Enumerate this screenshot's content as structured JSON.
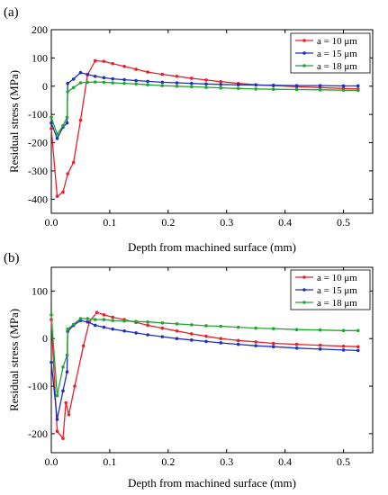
{
  "chart_data": [
    {
      "type": "line",
      "panel_label": "(a)",
      "xlabel": "Depth from machined surface (mm)",
      "ylabel": "Residual stress (MPa)",
      "xlim": [
        0,
        0.55
      ],
      "ylim": [
        -450,
        200
      ],
      "xticks": [
        0.0,
        0.1,
        0.2,
        0.3,
        0.4,
        0.5
      ],
      "xtick_labels": [
        "0.0",
        "0.1",
        "0.2",
        "0.3",
        "0.4",
        "0.5"
      ],
      "yticks": [
        -400,
        -300,
        -200,
        -100,
        0,
        100,
        200
      ],
      "ytick_labels": [
        "-400",
        "-300",
        "-200",
        "-100",
        "0",
        "100",
        "200"
      ],
      "legend_position": "top-right",
      "series": [
        {
          "name": "a = 10 μm",
          "color": "#e8202a",
          "x": [
            0,
            0.01,
            0.02,
            0.028,
            0.038,
            0.05,
            0.062,
            0.075,
            0.09,
            0.105,
            0.125,
            0.145,
            0.165,
            0.19,
            0.215,
            0.24,
            0.265,
            0.29,
            0.32,
            0.35,
            0.38,
            0.42,
            0.46,
            0.5,
            0.525
          ],
          "y": [
            -150,
            -390,
            -375,
            -310,
            -270,
            -120,
            40,
            90,
            88,
            80,
            70,
            60,
            50,
            42,
            35,
            28,
            22,
            16,
            10,
            5,
            2,
            -2,
            -5,
            -8,
            -10
          ]
        },
        {
          "name": "a = 15 μm",
          "color": "#1f2fbf",
          "x": [
            0,
            0.01,
            0.02,
            0.027,
            0.028,
            0.038,
            0.05,
            0.062,
            0.075,
            0.09,
            0.105,
            0.125,
            0.145,
            0.165,
            0.19,
            0.215,
            0.24,
            0.265,
            0.29,
            0.32,
            0.35,
            0.38,
            0.42,
            0.46,
            0.5,
            0.525
          ],
          "y": [
            -130,
            -185,
            -145,
            -130,
            10,
            25,
            48,
            42,
            35,
            30,
            26,
            23,
            20,
            17,
            14,
            12,
            10,
            8,
            6,
            5,
            4,
            3,
            2,
            2,
            1,
            1
          ]
        },
        {
          "name": "a = 18 μm",
          "color": "#22a532",
          "x": [
            0,
            0.01,
            0.02,
            0.027,
            0.028,
            0.038,
            0.05,
            0.062,
            0.075,
            0.09,
            0.105,
            0.125,
            0.145,
            0.165,
            0.19,
            0.215,
            0.24,
            0.265,
            0.29,
            0.32,
            0.35,
            0.38,
            0.42,
            0.46,
            0.5,
            0.525
          ],
          "y": [
            -110,
            -170,
            -140,
            -110,
            -20,
            -5,
            12,
            14,
            15,
            14,
            12,
            10,
            8,
            5,
            2,
            0,
            -2,
            -4,
            -6,
            -8,
            -10,
            -11,
            -12,
            -13,
            -14,
            -15
          ]
        }
      ]
    },
    {
      "type": "line",
      "panel_label": "(b)",
      "xlabel": "Depth from machined surface (mm)",
      "ylabel": "Residual stress (MPa)",
      "xlim": [
        0,
        0.55
      ],
      "ylim": [
        -240,
        150
      ],
      "xticks": [
        0.0,
        0.1,
        0.2,
        0.3,
        0.4,
        0.5
      ],
      "xtick_labels": [
        "0.0",
        "0.1",
        "0.2",
        "0.3",
        "0.4",
        "0.5"
      ],
      "yticks": [
        -200,
        -100,
        0,
        100
      ],
      "ytick_labels": [
        "-200",
        "-100",
        "0",
        "100"
      ],
      "legend_position": "top-right",
      "series": [
        {
          "name": "a = 10 μm",
          "color": "#e8202a",
          "x": [
            0,
            0.01,
            0.02,
            0.025,
            0.03,
            0.04,
            0.055,
            0.065,
            0.078,
            0.09,
            0.105,
            0.125,
            0.145,
            0.165,
            0.19,
            0.215,
            0.24,
            0.265,
            0.29,
            0.32,
            0.35,
            0.38,
            0.42,
            0.46,
            0.5,
            0.525
          ],
          "y": [
            40,
            -195,
            -210,
            -135,
            -160,
            -100,
            -15,
            35,
            55,
            50,
            45,
            40,
            34,
            28,
            22,
            16,
            10,
            5,
            0,
            -4,
            -7,
            -10,
            -12,
            -14,
            -16,
            -17
          ]
        },
        {
          "name": "a = 15 μm",
          "color": "#1f2fbf",
          "x": [
            0,
            0.01,
            0.02,
            0.027,
            0.028,
            0.038,
            0.05,
            0.062,
            0.075,
            0.09,
            0.105,
            0.125,
            0.145,
            0.165,
            0.19,
            0.215,
            0.24,
            0.265,
            0.29,
            0.32,
            0.35,
            0.38,
            0.42,
            0.46,
            0.5,
            0.525
          ],
          "y": [
            -50,
            -170,
            -110,
            -70,
            15,
            28,
            38,
            35,
            28,
            24,
            20,
            16,
            12,
            8,
            4,
            0,
            -3,
            -6,
            -9,
            -12,
            -15,
            -17,
            -20,
            -22,
            -24,
            -25
          ]
        },
        {
          "name": "a = 18 μm",
          "color": "#22a532",
          "x": [
            0,
            0.01,
            0.02,
            0.027,
            0.028,
            0.038,
            0.05,
            0.062,
            0.075,
            0.09,
            0.105,
            0.125,
            0.145,
            0.165,
            0.19,
            0.215,
            0.24,
            0.265,
            0.29,
            0.32,
            0.35,
            0.38,
            0.42,
            0.46,
            0.5,
            0.525
          ],
          "y": [
            50,
            -120,
            -60,
            -35,
            20,
            30,
            42,
            42,
            40,
            40,
            38,
            37,
            36,
            35,
            33,
            31,
            29,
            27,
            26,
            24,
            22,
            21,
            19,
            18,
            17,
            17
          ]
        }
      ]
    }
  ]
}
